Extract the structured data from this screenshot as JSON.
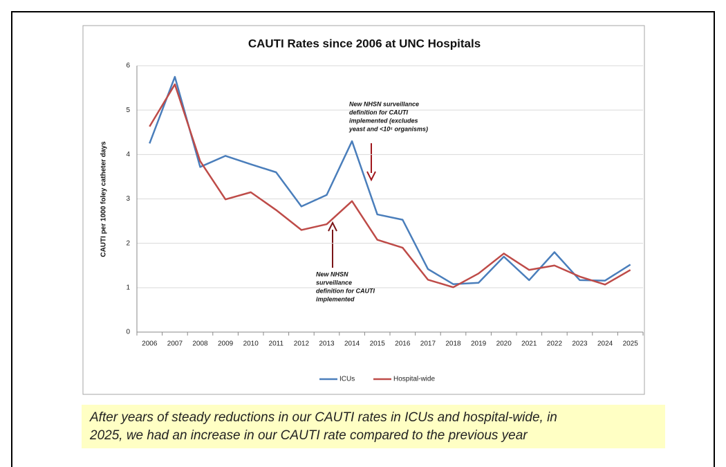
{
  "chart_data": {
    "type": "line",
    "title": "CAUTI Rates since 2006 at UNC Hospitals",
    "y_label": "CAUTI  per 1000 foley catheter days",
    "categories": [
      "2006",
      "2007",
      "2008",
      "2009",
      "2010",
      "2011",
      "2012",
      "2013",
      "2014",
      "2015",
      "2016",
      "2017",
      "2018",
      "2019",
      "2020",
      "2021",
      "2022",
      "2023",
      "2024",
      "2025"
    ],
    "series": [
      {
        "name": "ICUs",
        "color": "#4a7ebb",
        "values": [
          4.25,
          5.75,
          3.72,
          3.97,
          3.78,
          3.6,
          2.83,
          3.09,
          4.3,
          2.65,
          2.53,
          1.42,
          1.08,
          1.11,
          1.7,
          1.17,
          1.8,
          1.17,
          1.16,
          1.52
        ]
      },
      {
        "name": "Hospital-wide",
        "color": "#be4b48",
        "values": [
          4.63,
          5.58,
          3.85,
          2.99,
          3.15,
          2.75,
          2.3,
          2.43,
          2.95,
          2.08,
          1.9,
          1.18,
          1.01,
          1.32,
          1.77,
          1.4,
          1.5,
          1.25,
          1.07,
          1.4
        ]
      }
    ],
    "ylim": [
      0,
      6
    ],
    "yticks": [
      0,
      1,
      2,
      3,
      4,
      5,
      6
    ],
    "grid": true,
    "legend": "bottom",
    "annotations": [
      {
        "lines": [
          "New  NHSN surveillance",
          "definition for CAUTI",
          "implemented (excludes",
          "yeast and <10⁵ organisms)"
        ]
      },
      {
        "lines": [
          "New  NHSN",
          "surveillance",
          "definition for CAUTI",
          "implemented"
        ]
      }
    ]
  },
  "caption": {
    "lines": [
      "After years of steady reductions in our CAUTI rates in ICUs and hospital-wide, in",
      "2025, we had an increase in our CAUTI rate compared to the previous year"
    ]
  }
}
